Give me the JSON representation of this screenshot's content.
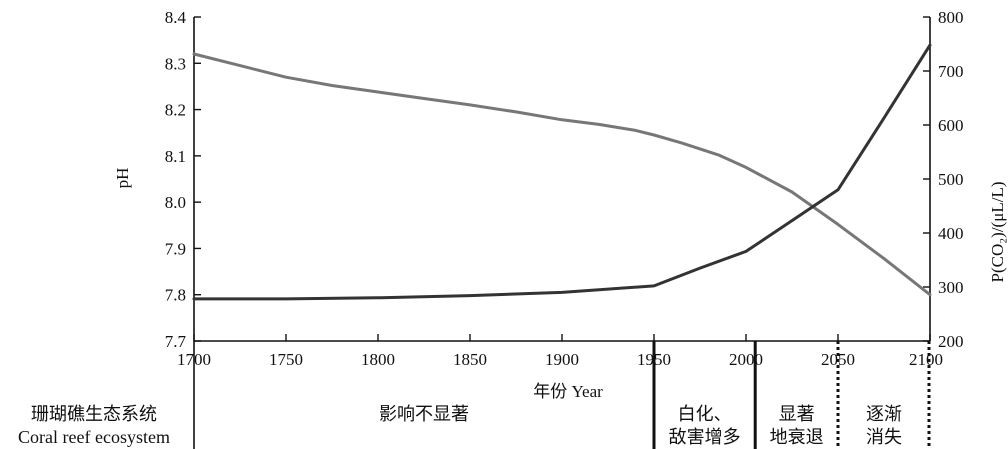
{
  "chart_data": {
    "type": "line",
    "xlabel": "年份 Year",
    "ylabel_left": "pH",
    "ylabel_right": "P(CO₂)/(μL/L)",
    "xlim": [
      1700,
      2100
    ],
    "ylim_left": [
      7.7,
      8.4
    ],
    "ylim_right": [
      200,
      800
    ],
    "x_ticks": [
      1700,
      1750,
      1800,
      1850,
      1900,
      1950,
      2000,
      2050,
      2100
    ],
    "y_ticks_left": [
      "7.7",
      "7.8",
      "7.9",
      "8.0",
      "8.1",
      "8.2",
      "8.3",
      "8.4"
    ],
    "y_ticks_right": [
      "200",
      "300",
      "400",
      "500",
      "600",
      "700",
      "800"
    ],
    "grid": false,
    "series": [
      {
        "axis": "left",
        "color": "#777777",
        "points": [
          [
            1700,
            8.32
          ],
          [
            1725,
            8.295
          ],
          [
            1750,
            8.27
          ],
          [
            1775,
            8.252
          ],
          [
            1800,
            8.238
          ],
          [
            1825,
            8.224
          ],
          [
            1850,
            8.21
          ],
          [
            1875,
            8.195
          ],
          [
            1900,
            8.178
          ],
          [
            1920,
            8.168
          ],
          [
            1940,
            8.155
          ],
          [
            1950,
            8.145
          ],
          [
            1965,
            8.128
          ],
          [
            1985,
            8.102
          ],
          [
            2000,
            8.075
          ],
          [
            2025,
            8.022
          ],
          [
            2050,
            7.952
          ],
          [
            2075,
            7.878
          ],
          [
            2100,
            7.8
          ]
        ]
      },
      {
        "axis": "right",
        "color": "#333333",
        "points": [
          [
            1700,
            278
          ],
          [
            1750,
            278
          ],
          [
            1800,
            280
          ],
          [
            1850,
            284
          ],
          [
            1900,
            290
          ],
          [
            1950,
            302
          ],
          [
            1975,
            335
          ],
          [
            2000,
            366
          ],
          [
            2025,
            423
          ],
          [
            2050,
            480
          ],
          [
            2075,
            613
          ],
          [
            2100,
            748
          ]
        ]
      }
    ]
  },
  "ecosystem": {
    "label_cn": "珊瑚礁生态系统",
    "label_en": "Coral reef ecosystem",
    "phases": [
      {
        "line1": "影响不显著",
        "line2": "",
        "from": 1700,
        "to": 1950
      },
      {
        "line1": "白化、",
        "line2": "敌害增多",
        "from": 1950,
        "to": 2005
      },
      {
        "line1": "显著",
        "line2": "地衰退",
        "from": 2005,
        "to": 2050
      },
      {
        "line1": "逐渐",
        "line2": "消失",
        "from": 2050,
        "to": 2100
      }
    ],
    "dividers": [
      {
        "x": 1950,
        "style": "solid"
      },
      {
        "x": 2005,
        "style": "solid"
      },
      {
        "x": 2050,
        "style": "dotted"
      },
      {
        "x": 2100,
        "style": "dotted"
      }
    ]
  }
}
